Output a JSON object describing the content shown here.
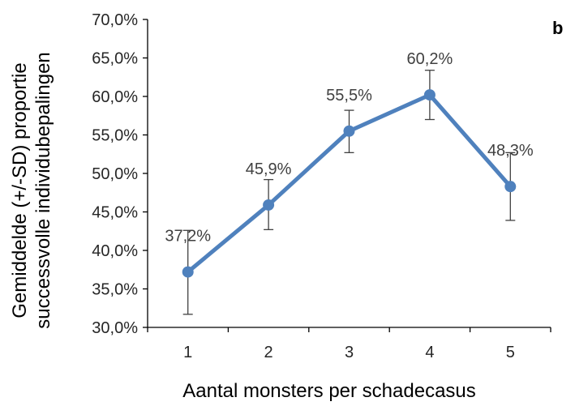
{
  "chart_data": {
    "type": "line",
    "title": "",
    "panel_label": "b",
    "xlabel": "Aantal monsters per schadecasus",
    "ylabel_lines": [
      "Gemiddelde (+/-SD) proportie",
      "successvolle individubepalingen"
    ],
    "categories": [
      "1",
      "2",
      "3",
      "4",
      "5"
    ],
    "series": [
      {
        "values": [
          37.2,
          45.9,
          55.5,
          60.2,
          48.3
        ],
        "labels": [
          "37,2%",
          "45,9%",
          "55,5%",
          "60,2%",
          "48,3%"
        ],
        "error_low": [
          31.7,
          42.7,
          52.7,
          57.0,
          43.9
        ],
        "error_high": [
          42.6,
          49.2,
          58.2,
          63.4,
          52.7
        ]
      }
    ],
    "ylim": [
      30,
      70
    ],
    "yticks": [
      30,
      35,
      40,
      45,
      50,
      55,
      60,
      65,
      70
    ],
    "ytick_labels": [
      "30,0%",
      "35,0%",
      "40,0%",
      "45,0%",
      "50,0%",
      "55,0%",
      "60,0%",
      "65,0%",
      "70,0%"
    ],
    "grid": false,
    "colors": {
      "line": "#4f81bd",
      "marker": "#4f81bd",
      "axis": "#000000",
      "error": "#404040"
    }
  }
}
